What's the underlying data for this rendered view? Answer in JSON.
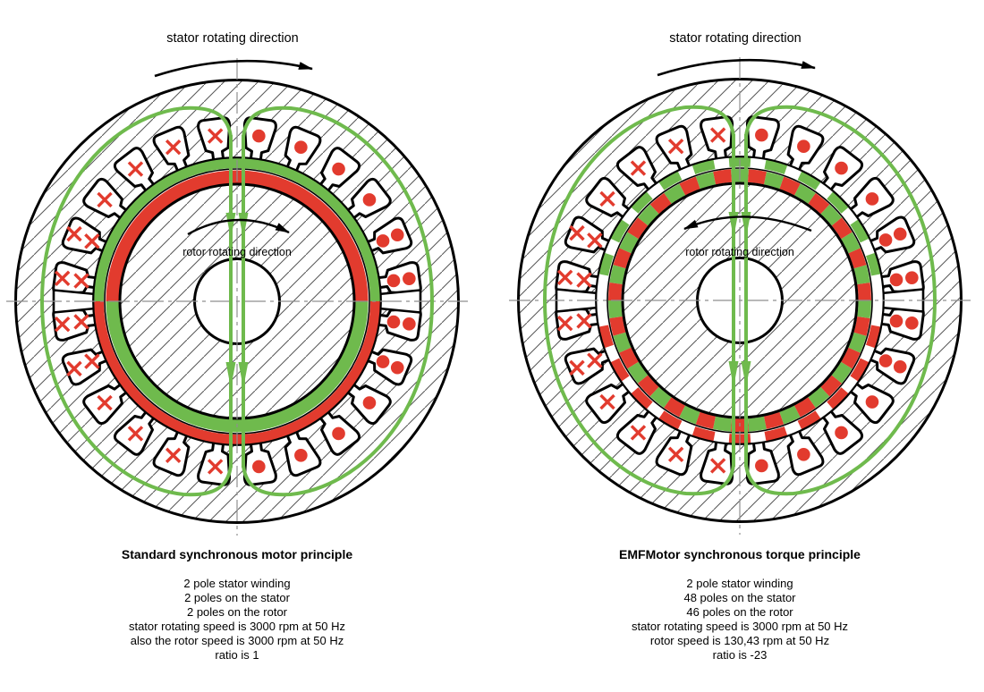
{
  "colors": {
    "pole_green": "#6fba4d",
    "pole_red": "#e23b2e",
    "flux_green": "#6fba4d",
    "outline_black": "#000000",
    "centerline_gray": "#8f8f8f",
    "hatch_gray": "#555555"
  },
  "geometry": {
    "slot_count": 24,
    "double_marker_angles": [
      7.5,
      22.5,
      157.5,
      172.5,
      187.5,
      202.5,
      337.5,
      352.5
    ],
    "right_rotor_segment_count": 46
  },
  "left_motor": {
    "stator_direction_label": "stator rotating direction",
    "rotor_direction_label": "rotor rotating direction",
    "rotor_direction": "clockwise",
    "title": "Standard synchronous motor principle",
    "caption_lines": [
      "2 pole stator winding",
      "2 poles on the stator",
      "2 poles on the rotor",
      "stator rotating speed is 3000 rpm at 50 Hz",
      "also the rotor speed is 3000 rpm at 50 Hz",
      "ratio is 1"
    ]
  },
  "right_motor": {
    "stator_direction_label": "stator rotating direction",
    "rotor_direction_label": "rotor rotating direction",
    "rotor_direction": "counterclockwise",
    "title": "EMFMotor synchronous torque principle",
    "caption_lines": [
      "2 pole stator winding",
      "48 poles on the stator",
      "46 poles on the rotor",
      "stator rotating speed is 3000 rpm at 50 Hz",
      "rotor speed is 130,43 rpm at 50 Hz",
      "ratio is -23"
    ]
  }
}
